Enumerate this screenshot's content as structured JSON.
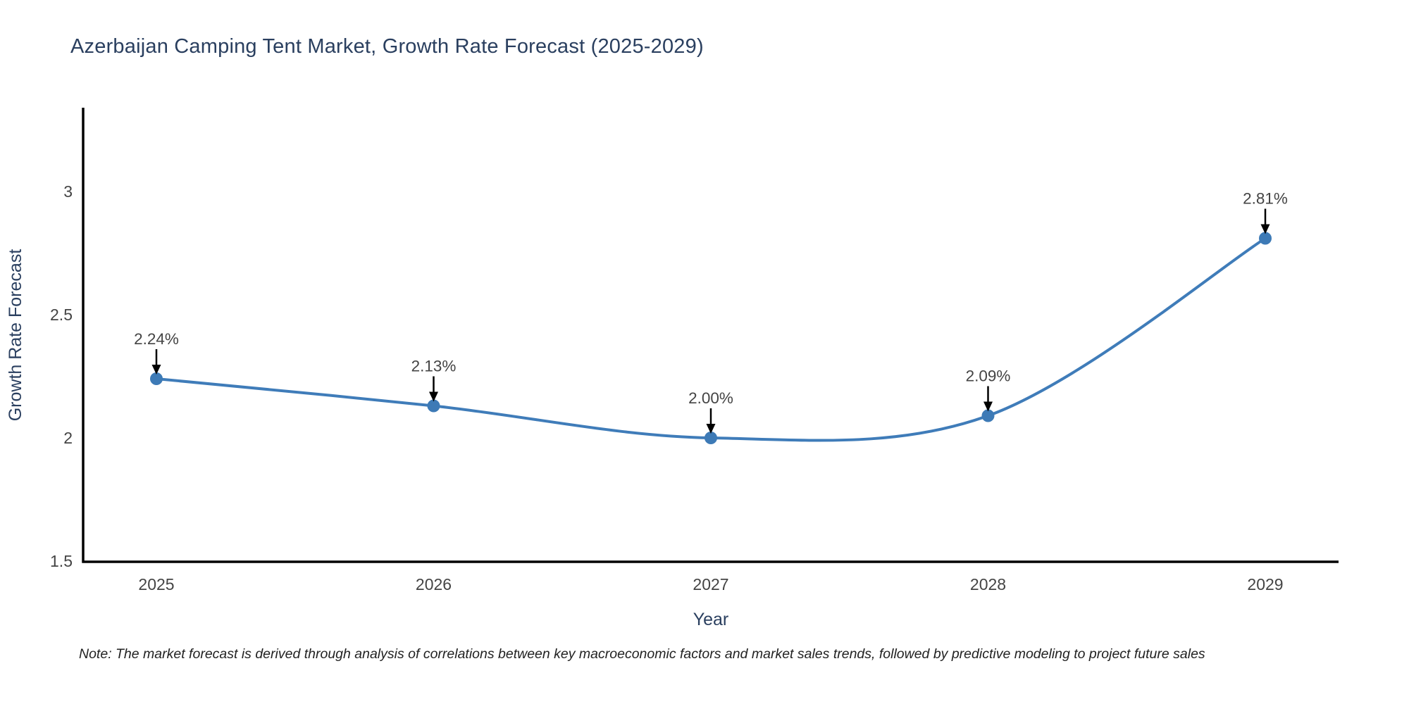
{
  "title": "Azerbaijan Camping Tent Market, Growth Rate Forecast (2025-2029)",
  "note": "Note: The market forecast is derived through analysis of correlations between key macroeconomic factors and market sales trends, followed by predictive modeling to project future sales",
  "colors": {
    "line": "#3f7cb9",
    "marker": "#3d7ab6",
    "title_text": "#2a3f5f",
    "axis_title_text": "#2a3f5f",
    "tick_text": "#444444",
    "annotation_text": "#444444",
    "arrow": "#000000",
    "axis_line": "#000000",
    "note_text": "#222222",
    "background": "#ffffff"
  },
  "chart_data": {
    "type": "line",
    "title": "Azerbaijan Camping Tent Market, Growth Rate Forecast (2025-2029)",
    "x": [
      2025,
      2026,
      2027,
      2028,
      2029
    ],
    "x_labels": [
      "2025",
      "2026",
      "2027",
      "2028",
      "2029"
    ],
    "values": [
      2.24,
      2.13,
      2.0,
      2.09,
      2.81
    ],
    "point_labels": [
      "2.24%",
      "2.13%",
      "2.00%",
      "2.09%",
      "2.81%"
    ],
    "xlabel": "Year",
    "ylabel": "Growth Rate Forecast",
    "ylim": [
      1.5,
      3.34
    ],
    "yticks": [
      1.5,
      2,
      2.5,
      3
    ],
    "ytick_labels": [
      "1.5",
      "2",
      "2.5",
      "3"
    ],
    "line_shape": "spline",
    "grid": false,
    "legend": "none",
    "annotations_have_arrows": true
  }
}
